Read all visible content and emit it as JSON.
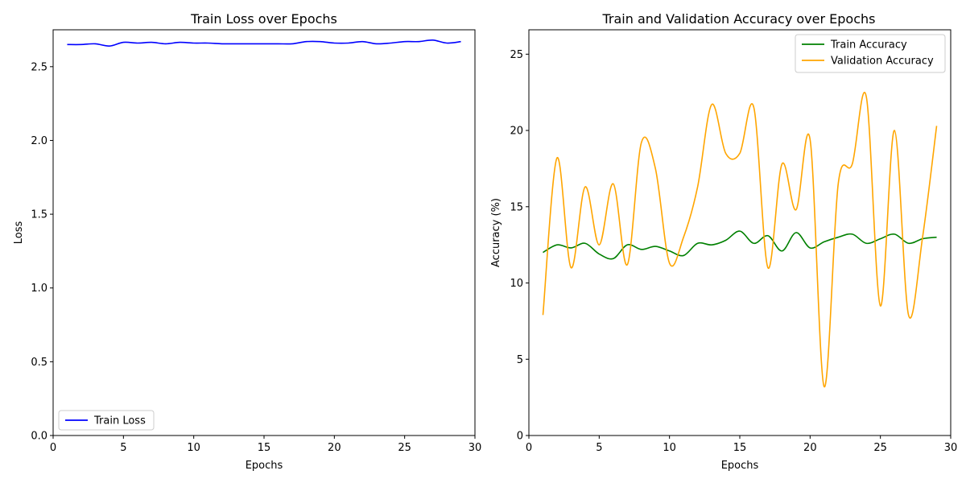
{
  "chart_data": [
    {
      "type": "line",
      "title": "Train Loss over Epochs",
      "xlabel": "Epochs",
      "ylabel": "Loss",
      "xlim": [
        0,
        30
      ],
      "ylim": [
        0,
        2.75
      ],
      "xticks": [
        0,
        5,
        10,
        15,
        20,
        25,
        30
      ],
      "yticks": [
        0.0,
        0.5,
        1.0,
        1.5,
        2.0,
        2.5
      ],
      "ytick_labels": [
        "0.0",
        "0.5",
        "1.0",
        "1.5",
        "2.0",
        "2.5"
      ],
      "grid": false,
      "legend": "lower-left",
      "series": [
        {
          "name": "Train Loss",
          "color": "#0000ff",
          "x": [
            1,
            2,
            3,
            4,
            5,
            6,
            7,
            8,
            9,
            10,
            11,
            12,
            13,
            14,
            15,
            16,
            17,
            18,
            19,
            20,
            21,
            22,
            23,
            24,
            25,
            26,
            27,
            28,
            29
          ],
          "y": [
            2.65,
            2.65,
            2.655,
            2.64,
            2.665,
            2.66,
            2.665,
            2.655,
            2.665,
            2.66,
            2.66,
            2.655,
            2.655,
            2.655,
            2.655,
            2.655,
            2.655,
            2.67,
            2.67,
            2.66,
            2.66,
            2.67,
            2.655,
            2.66,
            2.67,
            2.67,
            2.68,
            2.66,
            2.67
          ]
        }
      ]
    },
    {
      "type": "line",
      "title": "Train and Validation Accuracy over Epochs",
      "xlabel": "Epochs",
      "ylabel": "Accuracy (%)",
      "xlim": [
        0,
        30
      ],
      "ylim": [
        0,
        26.6
      ],
      "xticks": [
        0,
        5,
        10,
        15,
        20,
        25,
        30
      ],
      "yticks": [
        0,
        5,
        10,
        15,
        20,
        25
      ],
      "ytick_labels": [
        "0",
        "5",
        "10",
        "15",
        "20",
        "25"
      ],
      "grid": false,
      "legend": "top-right",
      "series": [
        {
          "name": "Train Accuracy",
          "color": "#008000",
          "x": [
            1,
            2,
            3,
            4,
            5,
            6,
            7,
            8,
            9,
            10,
            11,
            12,
            13,
            14,
            15,
            16,
            17,
            18,
            19,
            20,
            21,
            22,
            23,
            24,
            25,
            26,
            27,
            28,
            29
          ],
          "y": [
            12.0,
            12.5,
            12.3,
            12.6,
            11.9,
            11.6,
            12.5,
            12.2,
            12.4,
            12.1,
            11.8,
            12.6,
            12.5,
            12.8,
            13.4,
            12.6,
            13.1,
            12.1,
            13.3,
            12.3,
            12.7,
            13.0,
            13.2,
            12.6,
            12.9,
            13.2,
            12.6,
            12.9,
            13.0
          ]
        },
        {
          "name": "Validation Accuracy",
          "color": "#ffa500",
          "x": [
            1,
            2,
            3,
            4,
            5,
            6,
            7,
            8,
            9,
            10,
            11,
            12,
            13,
            14,
            15,
            16,
            17,
            18,
            19,
            20,
            21,
            22,
            23,
            24,
            25,
            26,
            27,
            28,
            29
          ],
          "y": [
            7.9,
            18.2,
            11.0,
            16.3,
            12.5,
            16.5,
            11.2,
            19.2,
            17.5,
            11.3,
            13.0,
            16.3,
            21.7,
            18.5,
            18.5,
            21.5,
            11.0,
            17.8,
            14.8,
            19.4,
            3.2,
            16.5,
            17.8,
            22.2,
            8.5,
            20.0,
            7.9,
            13.0,
            20.3
          ]
        }
      ]
    }
  ]
}
